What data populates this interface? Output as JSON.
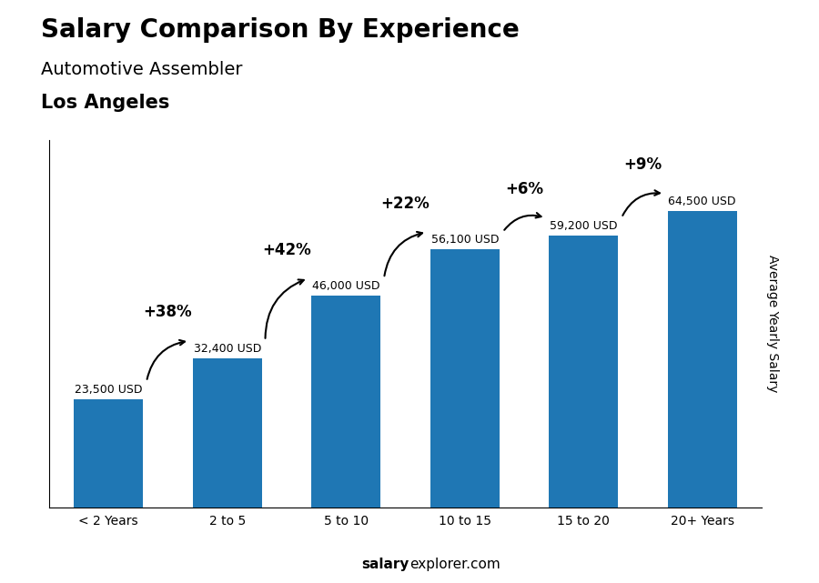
{
  "chart_data": {
    "type": "bar",
    "title": "Salary Comparison By Experience",
    "subtitle": [
      "Automotive Assembler",
      "Los Angeles"
    ],
    "ylabel": "Average Yearly Salary",
    "source": [
      "salary",
      "explorer.com"
    ],
    "categories": [
      "< 2 Years",
      "2 to 5",
      "5 to 10",
      "10 to 15",
      "15 to 20",
      "20+ Years"
    ],
    "values": [
      23500,
      32400,
      46000,
      56100,
      59200,
      64500
    ],
    "value_labels": [
      "23,500 USD",
      "32,400 USD",
      "46,000 USD",
      "56,100 USD",
      "59,200 USD",
      "64,500 USD"
    ],
    "data_labels": true,
    "annotations": [
      {
        "text": "+38%",
        "from": "< 2 Years",
        "to": "2 to 5"
      },
      {
        "text": "+42%",
        "from": "2 to 5",
        "to": "5 to 10"
      },
      {
        "text": "+22%",
        "from": "5 to 10",
        "to": "10 to 15"
      },
      {
        "text": "+6%",
        "from": "10 to 15",
        "to": "15 to 20"
      },
      {
        "text": "+9%",
        "from": "15 to 20",
        "to": "20+ Years"
      }
    ],
    "ylim": [
      0,
      80000
    ],
    "tick_labels": "x",
    "grid": false
  }
}
